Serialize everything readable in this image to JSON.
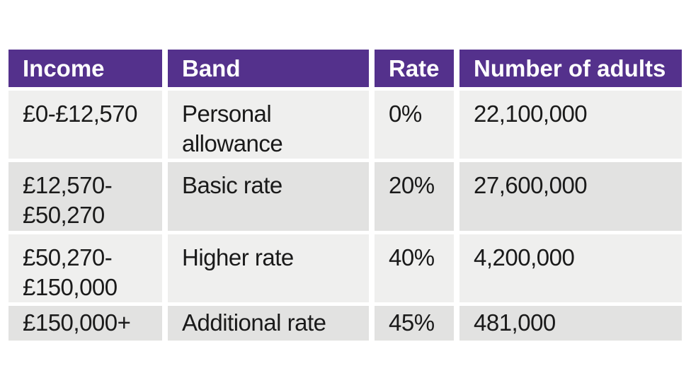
{
  "chart_data": {
    "type": "table",
    "columns": [
      "Income",
      "Band",
      "Rate",
      "Number of adults"
    ],
    "rows": [
      [
        "£0-£12,570",
        "Personal allowance",
        "0%",
        "22,100,000"
      ],
      [
        "£12,570-£50,270",
        "Basic rate",
        "20%",
        "27,600,000"
      ],
      [
        "£50,270-£150,000",
        "Higher rate",
        "40%",
        "4,200,000"
      ],
      [
        "£150,000+",
        "Additional rate",
        "45%",
        "481,000"
      ]
    ]
  },
  "colors": {
    "header_bg": "#54318c",
    "header_text": "#ffffff",
    "row_light": "#efefee",
    "row_dark": "#e2e2e1",
    "body_text": "#1a1a1a",
    "page_bg": "#ffffff"
  }
}
